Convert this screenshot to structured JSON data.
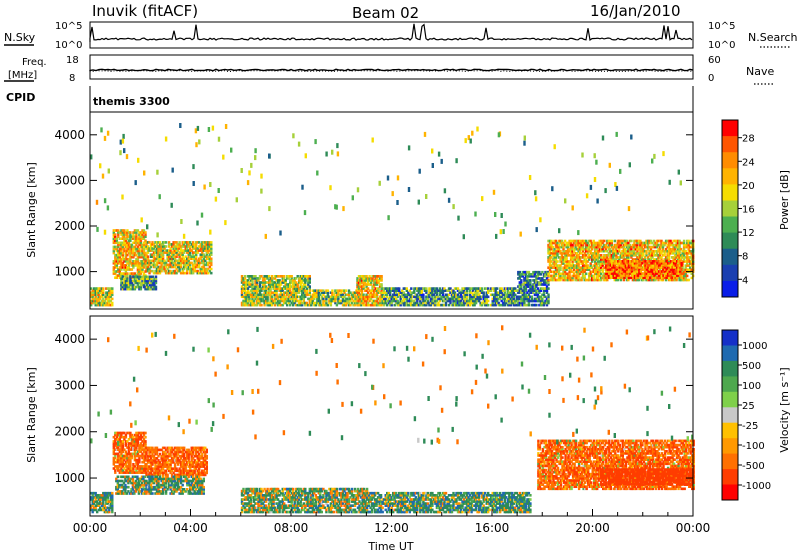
{
  "header": {
    "station": "Inuvik (fitACF)",
    "beam": "Beam 02",
    "date": "16/Jan/2010"
  },
  "strip_panels": {
    "nsky": {
      "left_label": "N.Sky",
      "left_ticks": [
        "10^5",
        "10^0"
      ],
      "right_label": "N.Search",
      "right_ticks": [
        "10^5",
        "10^0"
      ]
    },
    "freq": {
      "left_label": "Freq.",
      "left_unit": "[MHz]",
      "left_ticks": [
        "18",
        "8"
      ],
      "right_label": "Nave",
      "right_ticks": [
        "60",
        "0"
      ]
    },
    "cpid": {
      "label": "CPID",
      "value": "themis 3300"
    }
  },
  "colorbar_power": {
    "label": "Power [dB]",
    "ticks": [
      "28",
      "24",
      "20",
      "16",
      "12",
      "8",
      "4"
    ],
    "colors": [
      "#ff0000",
      "#ff5500",
      "#ff8c00",
      "#ffb300",
      "#f5dc00",
      "#a6d03a",
      "#4caf50",
      "#2e8b57",
      "#1b5e8a",
      "#1a3fb0",
      "#0a1ee8"
    ]
  },
  "colorbar_velocity": {
    "label": "Velocity [m s⁻¹]",
    "ticks": [
      "1000",
      "500",
      "100",
      "25",
      "-25",
      "-100",
      "-500",
      "-1000"
    ],
    "colors": [
      "#1530c8",
      "#1f6ab0",
      "#2e8b57",
      "#4ea84e",
      "#7fd04a",
      "#c8c8c8",
      "#ffc000",
      "#ff9900",
      "#ff7000",
      "#ff3d00",
      "#ff0000"
    ]
  },
  "chart_data": [
    {
      "type": "heatmap",
      "name": "power",
      "ylabel": "Slant Range [km]",
      "yticks": [
        1000,
        2000,
        3000,
        4000
      ],
      "ylim": [
        180,
        4500
      ],
      "xlim": [
        0,
        24
      ],
      "xticks": [
        "00:00",
        "04:00",
        "08:00",
        "12:00",
        "16:00",
        "20:00",
        "00:00"
      ],
      "value_range_db": [
        0,
        30
      ],
      "regions": [
        {
          "t": [
            0.0,
            0.9
          ],
          "r": [
            250,
            620
          ],
          "v": 17
        },
        {
          "t": [
            0.9,
            2.2
          ],
          "r": [
            850,
            1900
          ],
          "v": 20
        },
        {
          "t": [
            2.2,
            4.8
          ],
          "r": [
            950,
            1650
          ],
          "v": 18
        },
        {
          "t": [
            1.2,
            2.6
          ],
          "r": [
            600,
            900
          ],
          "v": 10
        },
        {
          "t": [
            6.0,
            8.7
          ],
          "r": [
            250,
            900
          ],
          "v": 16
        },
        {
          "t": [
            8.7,
            10.8
          ],
          "r": [
            250,
            600
          ],
          "v": 15
        },
        {
          "t": [
            10.6,
            11.6
          ],
          "r": [
            250,
            900
          ],
          "v": 20
        },
        {
          "t": [
            11.6,
            17.0
          ],
          "r": [
            250,
            650
          ],
          "v": 10
        },
        {
          "t": [
            17.0,
            18.2
          ],
          "r": [
            250,
            1000
          ],
          "v": 8
        },
        {
          "t": [
            18.2,
            24.0
          ],
          "r": [
            800,
            1700
          ],
          "v": 20
        },
        {
          "t": [
            20.5,
            23.5
          ],
          "r": [
            850,
            1250
          ],
          "v": 26
        }
      ]
    },
    {
      "type": "heatmap",
      "name": "velocity",
      "ylabel": "Slant Range [km]",
      "yticks": [
        1000,
        2000,
        3000,
        4000
      ],
      "ylim": [
        180,
        4500
      ],
      "xlim": [
        0,
        24
      ],
      "xticks": [
        "00:00",
        "04:00",
        "08:00",
        "12:00",
        "16:00",
        "20:00",
        "00:00"
      ],
      "xlabel": "Time UT",
      "value_range": [
        -1000,
        1000
      ],
      "regions": [
        {
          "t": [
            0.0,
            0.9
          ],
          "r": [
            250,
            700
          ],
          "v": 60
        },
        {
          "t": [
            0.9,
            2.2
          ],
          "r": [
            1100,
            2000
          ],
          "v": -100
        },
        {
          "t": [
            2.2,
            4.6
          ],
          "r": [
            1050,
            1650
          ],
          "v": -110
        },
        {
          "t": [
            1.0,
            4.5
          ],
          "r": [
            650,
            1050
          ],
          "v": 50
        },
        {
          "t": [
            6.0,
            11.0
          ],
          "r": [
            250,
            750
          ],
          "v": 40
        },
        {
          "t": [
            11.0,
            17.5
          ],
          "r": [
            250,
            700
          ],
          "v": 70
        },
        {
          "t": [
            17.8,
            24.0
          ],
          "r": [
            750,
            1800
          ],
          "v": -100
        },
        {
          "t": [
            20.3,
            24.0
          ],
          "r": [
            850,
            1200
          ],
          "v": -300
        }
      ]
    }
  ]
}
